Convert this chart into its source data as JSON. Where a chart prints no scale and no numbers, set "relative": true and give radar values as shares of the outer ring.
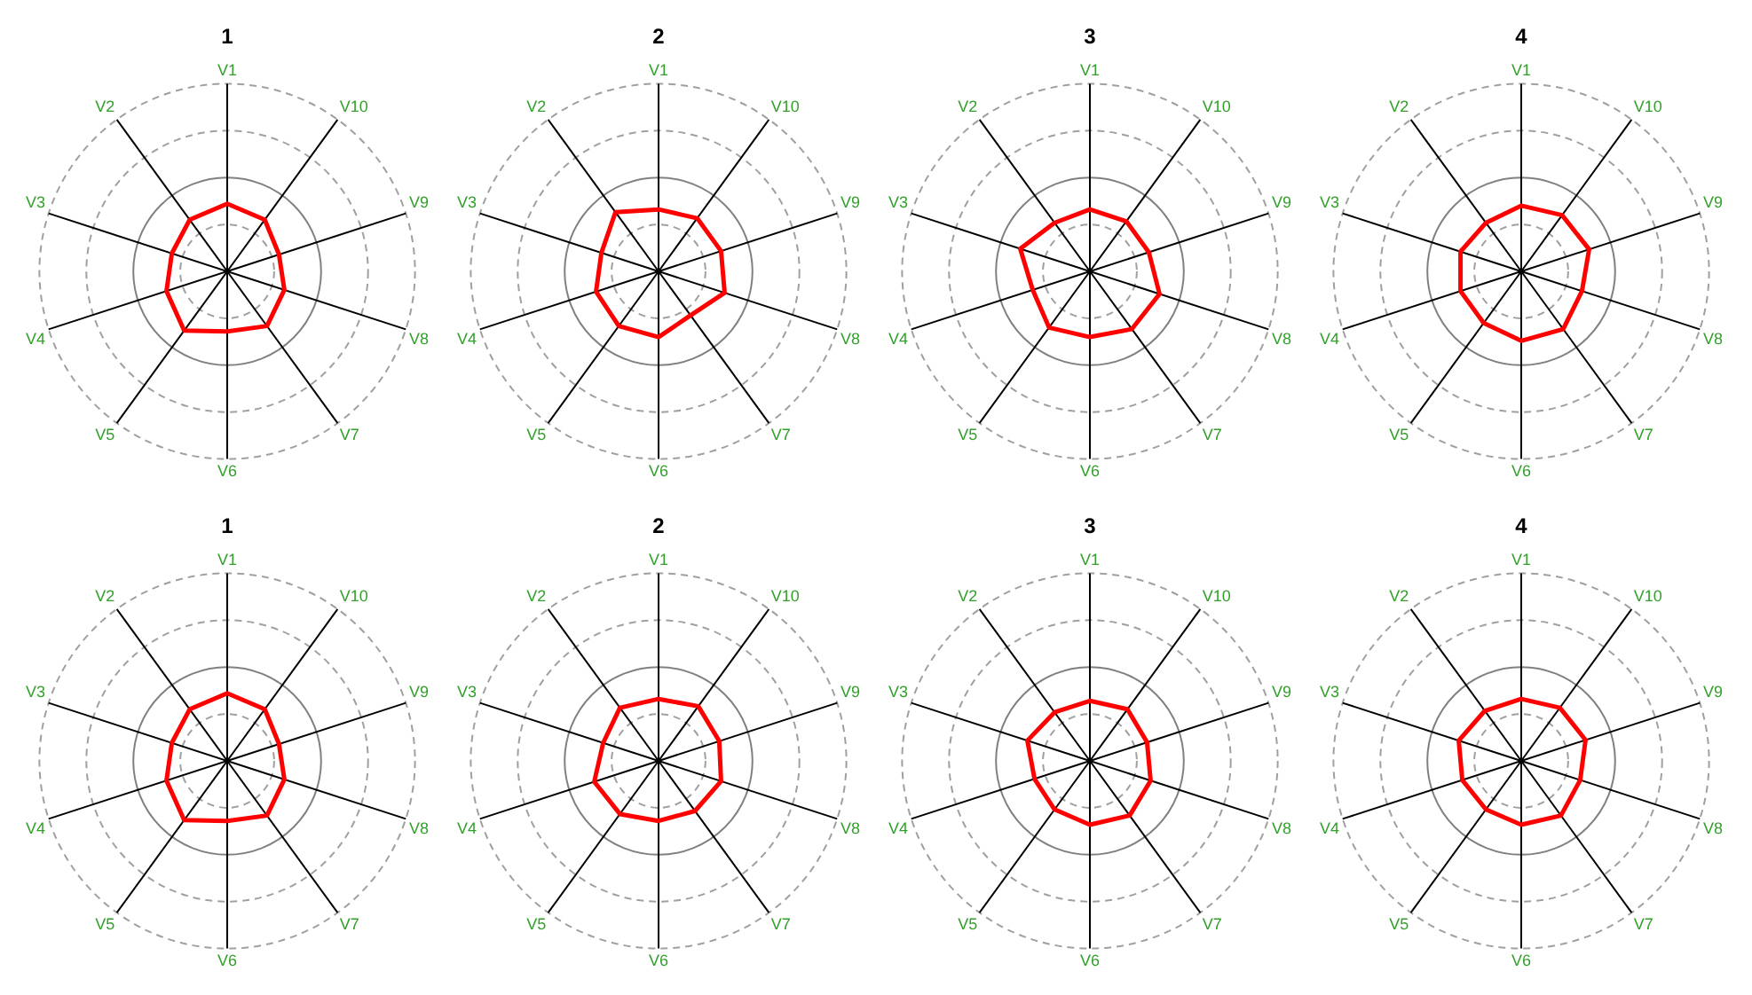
{
  "chart_data": [
    {
      "type": "radar",
      "title": "1",
      "categories": [
        "V1",
        "V10",
        "V9",
        "V8",
        "V7",
        "V6",
        "V5",
        "V4",
        "V3",
        "V2"
      ],
      "relative": true,
      "series": [
        {
          "color": "#ff0000",
          "values": [
            0.36,
            0.34,
            0.29,
            0.32,
            0.36,
            0.32,
            0.39,
            0.34,
            0.31,
            0.34
          ]
        }
      ]
    },
    {
      "type": "radar",
      "title": "2",
      "categories": [
        "V1",
        "V10",
        "V9",
        "V8",
        "V7",
        "V6",
        "V5",
        "V4",
        "V3",
        "V2"
      ],
      "relative": true,
      "series": [
        {
          "color": "#ff0000",
          "values": [
            0.33,
            0.35,
            0.35,
            0.37,
            0.29,
            0.35,
            0.36,
            0.35,
            0.32,
            0.39
          ]
        }
      ]
    },
    {
      "type": "radar",
      "title": "3",
      "categories": [
        "V1",
        "V10",
        "V9",
        "V8",
        "V7",
        "V6",
        "V5",
        "V4",
        "V3",
        "V2"
      ],
      "relative": true,
      "series": [
        {
          "color": "#ff0000",
          "values": [
            0.33,
            0.33,
            0.33,
            0.39,
            0.38,
            0.35,
            0.37,
            0.32,
            0.39,
            0.32
          ]
        }
      ]
    },
    {
      "type": "radar",
      "title": "4",
      "categories": [
        "V1",
        "V10",
        "V9",
        "V8",
        "V7",
        "V6",
        "V5",
        "V4",
        "V3",
        "V2"
      ],
      "relative": true,
      "series": [
        {
          "color": "#ff0000",
          "values": [
            0.35,
            0.37,
            0.38,
            0.34,
            0.38,
            0.37,
            0.34,
            0.34,
            0.34,
            0.32
          ]
        }
      ]
    },
    {
      "type": "radar",
      "title": "1",
      "categories": [
        "V1",
        "V10",
        "V9",
        "V8",
        "V7",
        "V6",
        "V5",
        "V4",
        "V3",
        "V2"
      ],
      "relative": true,
      "series": [
        {
          "color": "#ff0000",
          "values": [
            0.36,
            0.34,
            0.29,
            0.32,
            0.36,
            0.32,
            0.39,
            0.34,
            0.31,
            0.34
          ]
        }
      ]
    },
    {
      "type": "radar",
      "title": "2",
      "categories": [
        "V1",
        "V10",
        "V9",
        "V8",
        "V7",
        "V6",
        "V5",
        "V4",
        "V3",
        "V2"
      ],
      "relative": true,
      "series": [
        {
          "color": "#ff0000",
          "values": [
            0.33,
            0.36,
            0.34,
            0.35,
            0.33,
            0.32,
            0.35,
            0.36,
            0.31,
            0.35
          ]
        }
      ]
    },
    {
      "type": "radar",
      "title": "3",
      "categories": [
        "V1",
        "V10",
        "V9",
        "V8",
        "V7",
        "V6",
        "V5",
        "V4",
        "V3",
        "V2"
      ],
      "relative": true,
      "series": [
        {
          "color": "#ff0000",
          "values": [
            0.32,
            0.34,
            0.32,
            0.34,
            0.36,
            0.34,
            0.32,
            0.31,
            0.35,
            0.32
          ]
        }
      ]
    },
    {
      "type": "radar",
      "title": "4",
      "categories": [
        "V1",
        "V10",
        "V9",
        "V8",
        "V7",
        "V6",
        "V5",
        "V4",
        "V3",
        "V2"
      ],
      "relative": true,
      "series": [
        {
          "color": "#ff0000",
          "values": [
            0.33,
            0.35,
            0.36,
            0.33,
            0.36,
            0.34,
            0.32,
            0.33,
            0.35,
            0.33
          ]
        }
      ]
    }
  ]
}
